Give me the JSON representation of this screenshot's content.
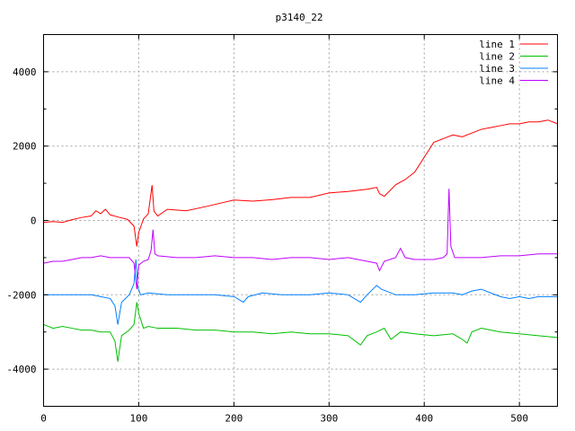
{
  "chart_data": {
    "type": "line",
    "title": "p3140_22",
    "xlabel": "",
    "ylabel": "",
    "xlim": [
      0,
      540
    ],
    "ylim": [
      -5000,
      5000
    ],
    "xticks": [
      0,
      100,
      200,
      300,
      400,
      500
    ],
    "yticks": [
      -4000,
      -2000,
      0,
      2000,
      4000
    ],
    "grid": true,
    "legend": "top-right",
    "series": [
      {
        "name": "line 1",
        "color": "#ff0000",
        "points": [
          [
            0,
            -50
          ],
          [
            10,
            -30
          ],
          [
            20,
            -50
          ],
          [
            30,
            20
          ],
          [
            40,
            80
          ],
          [
            50,
            120
          ],
          [
            55,
            260
          ],
          [
            60,
            180
          ],
          [
            65,
            300
          ],
          [
            70,
            150
          ],
          [
            80,
            80
          ],
          [
            88,
            30
          ],
          [
            95,
            -150
          ],
          [
            98,
            -700
          ],
          [
            100,
            -320
          ],
          [
            105,
            40
          ],
          [
            110,
            180
          ],
          [
            114,
            950
          ],
          [
            116,
            250
          ],
          [
            120,
            120
          ],
          [
            130,
            300
          ],
          [
            150,
            260
          ],
          [
            170,
            370
          ],
          [
            200,
            550
          ],
          [
            220,
            520
          ],
          [
            240,
            560
          ],
          [
            260,
            620
          ],
          [
            280,
            620
          ],
          [
            300,
            740
          ],
          [
            320,
            780
          ],
          [
            340,
            840
          ],
          [
            350,
            890
          ],
          [
            353,
            720
          ],
          [
            358,
            650
          ],
          [
            370,
            960
          ],
          [
            380,
            1100
          ],
          [
            390,
            1300
          ],
          [
            400,
            1700
          ],
          [
            405,
            1900
          ],
          [
            410,
            2100
          ],
          [
            420,
            2200
          ],
          [
            430,
            2300
          ],
          [
            440,
            2250
          ],
          [
            450,
            2350
          ],
          [
            460,
            2450
          ],
          [
            470,
            2500
          ],
          [
            480,
            2550
          ],
          [
            490,
            2600
          ],
          [
            500,
            2600
          ],
          [
            510,
            2650
          ],
          [
            520,
            2650
          ],
          [
            530,
            2700
          ],
          [
            540,
            2600
          ]
        ]
      },
      {
        "name": "line 2",
        "color": "#00c000",
        "points": [
          [
            0,
            -2800
          ],
          [
            10,
            -2900
          ],
          [
            20,
            -2850
          ],
          [
            30,
            -2900
          ],
          [
            40,
            -2950
          ],
          [
            50,
            -2950
          ],
          [
            60,
            -3000
          ],
          [
            70,
            -3000
          ],
          [
            75,
            -3250
          ],
          [
            78,
            -3800
          ],
          [
            82,
            -3100
          ],
          [
            90,
            -2950
          ],
          [
            95,
            -2800
          ],
          [
            98,
            -2200
          ],
          [
            100,
            -2500
          ],
          [
            105,
            -2900
          ],
          [
            110,
            -2850
          ],
          [
            120,
            -2900
          ],
          [
            140,
            -2900
          ],
          [
            160,
            -2950
          ],
          [
            180,
            -2950
          ],
          [
            200,
            -3000
          ],
          [
            220,
            -3000
          ],
          [
            240,
            -3050
          ],
          [
            260,
            -3000
          ],
          [
            280,
            -3050
          ],
          [
            300,
            -3050
          ],
          [
            320,
            -3100
          ],
          [
            333,
            -3350
          ],
          [
            340,
            -3100
          ],
          [
            350,
            -3000
          ],
          [
            358,
            -2900
          ],
          [
            365,
            -3200
          ],
          [
            375,
            -3000
          ],
          [
            390,
            -3050
          ],
          [
            410,
            -3100
          ],
          [
            430,
            -3050
          ],
          [
            440,
            -3200
          ],
          [
            445,
            -3300
          ],
          [
            450,
            -3000
          ],
          [
            460,
            -2900
          ],
          [
            480,
            -3000
          ],
          [
            500,
            -3050
          ],
          [
            520,
            -3100
          ],
          [
            540,
            -3150
          ]
        ]
      },
      {
        "name": "line 3",
        "color": "#0080ff",
        "points": [
          [
            0,
            -2000
          ],
          [
            10,
            -2000
          ],
          [
            20,
            -2000
          ],
          [
            30,
            -2000
          ],
          [
            40,
            -2000
          ],
          [
            50,
            -2000
          ],
          [
            60,
            -2050
          ],
          [
            70,
            -2100
          ],
          [
            75,
            -2300
          ],
          [
            78,
            -2800
          ],
          [
            82,
            -2200
          ],
          [
            90,
            -2000
          ],
          [
            95,
            -1700
          ],
          [
            97,
            -1050
          ],
          [
            99,
            -1800
          ],
          [
            102,
            -2000
          ],
          [
            110,
            -1950
          ],
          [
            130,
            -2000
          ],
          [
            150,
            -2000
          ],
          [
            180,
            -2000
          ],
          [
            200,
            -2050
          ],
          [
            210,
            -2200
          ],
          [
            215,
            -2050
          ],
          [
            230,
            -1950
          ],
          [
            250,
            -2000
          ],
          [
            280,
            -2000
          ],
          [
            300,
            -1950
          ],
          [
            320,
            -2000
          ],
          [
            333,
            -2200
          ],
          [
            340,
            -2000
          ],
          [
            350,
            -1750
          ],
          [
            355,
            -1850
          ],
          [
            370,
            -2000
          ],
          [
            390,
            -2000
          ],
          [
            410,
            -1950
          ],
          [
            430,
            -1950
          ],
          [
            440,
            -2000
          ],
          [
            450,
            -1900
          ],
          [
            460,
            -1850
          ],
          [
            470,
            -1950
          ],
          [
            480,
            -2050
          ],
          [
            490,
            -2100
          ],
          [
            500,
            -2050
          ],
          [
            510,
            -2100
          ],
          [
            520,
            -2050
          ],
          [
            540,
            -2050
          ]
        ]
      },
      {
        "name": "line 4",
        "color": "#c000ff",
        "points": [
          [
            0,
            -1150
          ],
          [
            10,
            -1100
          ],
          [
            20,
            -1100
          ],
          [
            30,
            -1050
          ],
          [
            40,
            -1000
          ],
          [
            50,
            -1000
          ],
          [
            60,
            -950
          ],
          [
            70,
            -1000
          ],
          [
            80,
            -1000
          ],
          [
            90,
            -1000
          ],
          [
            95,
            -1150
          ],
          [
            98,
            -1850
          ],
          [
            100,
            -1200
          ],
          [
            105,
            -1100
          ],
          [
            110,
            -1050
          ],
          [
            113,
            -800
          ],
          [
            115,
            -250
          ],
          [
            117,
            -900
          ],
          [
            120,
            -950
          ],
          [
            140,
            -1000
          ],
          [
            160,
            -1000
          ],
          [
            180,
            -950
          ],
          [
            200,
            -1000
          ],
          [
            220,
            -1000
          ],
          [
            240,
            -1050
          ],
          [
            260,
            -1000
          ],
          [
            280,
            -1000
          ],
          [
            300,
            -1050
          ],
          [
            320,
            -1000
          ],
          [
            340,
            -1100
          ],
          [
            350,
            -1150
          ],
          [
            353,
            -1350
          ],
          [
            358,
            -1100
          ],
          [
            370,
            -1000
          ],
          [
            375,
            -750
          ],
          [
            380,
            -1000
          ],
          [
            390,
            -1050
          ],
          [
            410,
            -1050
          ],
          [
            420,
            -1000
          ],
          [
            424,
            -900
          ],
          [
            426,
            850
          ],
          [
            428,
            -700
          ],
          [
            432,
            -1000
          ],
          [
            440,
            -1000
          ],
          [
            460,
            -1000
          ],
          [
            480,
            -950
          ],
          [
            500,
            -950
          ],
          [
            520,
            -900
          ],
          [
            540,
            -900
          ]
        ]
      }
    ]
  }
}
